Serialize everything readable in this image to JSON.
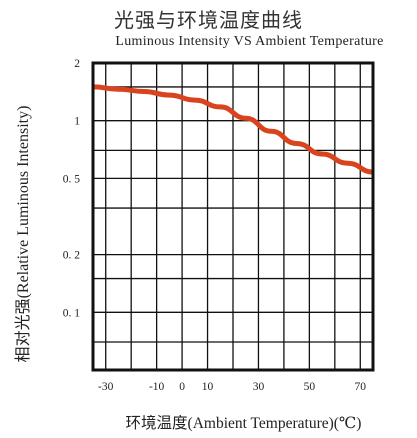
{
  "chart_data": {
    "type": "line",
    "title": "光强与环境温度曲线",
    "subtitle": "Luminous Intensity VS Ambient Temperature",
    "xlabel": "环境温度(Ambient Temperature)(℃)",
    "ylabel": "相对光强(Relative Luminous Intensity)",
    "xlim": [
      -35,
      75
    ],
    "ylim": [
      0.05,
      2
    ],
    "y_scale": "log",
    "grid": true,
    "x_ticks": [
      {
        "value": -30,
        "label": "-30"
      },
      {
        "value": -10,
        "label": "-10"
      },
      {
        "value": 0,
        "label": "0"
      },
      {
        "value": 10,
        "label": "10"
      },
      {
        "value": 30,
        "label": "30"
      },
      {
        "value": 50,
        "label": "50"
      },
      {
        "value": 70,
        "label": "70"
      }
    ],
    "y_ticks": [
      {
        "value": 2,
        "label": "2"
      },
      {
        "value": 1,
        "label": "1"
      },
      {
        "value": 0.5,
        "label": "0. 5"
      },
      {
        "value": 0.2,
        "label": "0. 2"
      },
      {
        "value": 0.1,
        "label": "0. 1"
      }
    ],
    "series": [
      {
        "color": "#d9441e",
        "x": [
          -35,
          -25,
          -15,
          -5,
          5,
          15,
          25,
          35,
          45,
          55,
          65,
          75
        ],
        "y": [
          1.5,
          1.46,
          1.42,
          1.36,
          1.28,
          1.18,
          1.03,
          0.88,
          0.76,
          0.67,
          0.6,
          0.54
        ]
      }
    ]
  }
}
